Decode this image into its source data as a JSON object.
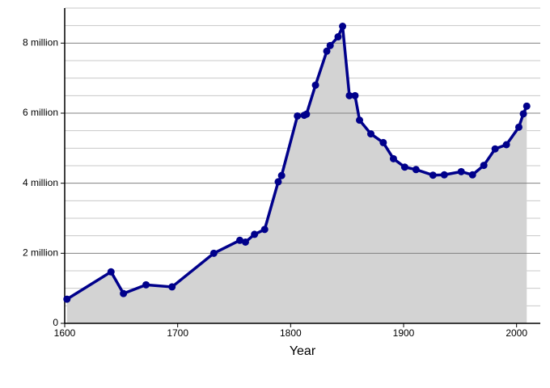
{
  "chart_data": {
    "type": "line",
    "x_label": "Year",
    "x": [
      1602,
      1641,
      1652,
      1672,
      1695,
      1732,
      1755,
      1760,
      1768,
      1777,
      1789,
      1792,
      1806,
      1812,
      1814,
      1822,
      1832,
      1835,
      1842,
      1846,
      1852,
      1857,
      1861,
      1871,
      1882,
      1891,
      1901,
      1911,
      1926,
      1936,
      1951,
      1961,
      1971,
      1981,
      1991,
      2002,
      2006,
      2009
    ],
    "values": [
      0.69,
      1.47,
      0.85,
      1.1,
      1.04,
      2.0,
      2.37,
      2.32,
      2.54,
      2.68,
      4.04,
      4.22,
      5.92,
      5.94,
      5.97,
      6.8,
      7.77,
      7.93,
      8.18,
      8.48,
      6.5,
      6.5,
      5.8,
      5.41,
      5.16,
      4.7,
      4.46,
      4.39,
      4.23,
      4.24,
      4.33,
      4.24,
      4.51,
      4.98,
      5.1,
      5.6,
      5.98,
      6.2
    ],
    "color": "#00008b",
    "area_color": "#d3d3d3",
    "xlim": [
      1600,
      2021
    ],
    "xticks": [
      1600,
      1700,
      1800,
      1900,
      2000
    ],
    "ylim": [
      0,
      9
    ],
    "yticks": [
      0,
      {
        "value": 2,
        "label": "2 million"
      },
      {
        "value": 4,
        "label": "4 million"
      },
      {
        "value": 6,
        "label": "6 million"
      },
      {
        "value": 8,
        "label": "8 million"
      }
    ],
    "minor_yticks": [
      0.5,
      1,
      1.5,
      2.5,
      3,
      3.5,
      4.5,
      5,
      5.5,
      6.5,
      7,
      7.5,
      8.5,
      9
    ],
    "grid": true
  }
}
